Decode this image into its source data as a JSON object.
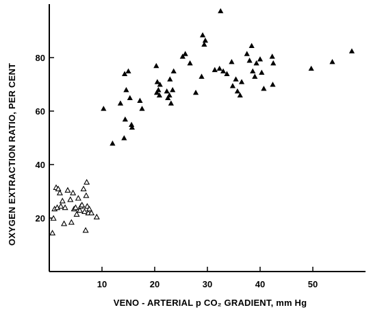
{
  "chart_data": {
    "type": "scatter",
    "title": "",
    "xlabel": "VENO - ARTERIAL p CO₂ GRADIENT, mm Hg",
    "ylabel": "OXYGEN EXTRACTION RATIO, PER CENT",
    "xlim": [
      0,
      60
    ],
    "ylim": [
      0,
      100
    ],
    "xticks": [
      10,
      20,
      30,
      40,
      50
    ],
    "yticks": [
      20,
      40,
      60,
      80
    ],
    "grid": false,
    "series": [
      {
        "marker": "open-triangle",
        "color": "#000000",
        "points": [
          [
            0.6,
            14.5
          ],
          [
            0.8,
            20.0
          ],
          [
            1.0,
            23.5
          ],
          [
            1.5,
            24.0
          ],
          [
            1.3,
            31.5
          ],
          [
            1.7,
            31.0
          ],
          [
            2.0,
            29.5
          ],
          [
            2.2,
            24.5
          ],
          [
            2.5,
            26.5
          ],
          [
            2.8,
            18.0
          ],
          [
            3.0,
            24.0
          ],
          [
            3.5,
            30.5
          ],
          [
            4.0,
            27.0
          ],
          [
            4.2,
            18.5
          ],
          [
            4.5,
            29.5
          ],
          [
            4.7,
            23.5
          ],
          [
            5.0,
            24.0
          ],
          [
            5.2,
            21.5
          ],
          [
            5.5,
            27.5
          ],
          [
            5.8,
            23.0
          ],
          [
            6.0,
            24.5
          ],
          [
            6.2,
            25.0
          ],
          [
            6.5,
            31.0
          ],
          [
            6.7,
            22.5
          ],
          [
            6.9,
            15.5
          ],
          [
            7.0,
            28.5
          ],
          [
            7.1,
            33.5
          ],
          [
            7.2,
            24.5
          ],
          [
            7.4,
            22.0
          ],
          [
            7.6,
            23.5
          ],
          [
            8.0,
            22.0
          ],
          [
            9.0,
            20.5
          ]
        ]
      },
      {
        "marker": "filled-triangle",
        "color": "#000000",
        "points": [
          [
            10.3,
            61.0
          ],
          [
            12.0,
            48.0
          ],
          [
            13.5,
            63.0
          ],
          [
            14.2,
            50.0
          ],
          [
            14.4,
            57.0
          ],
          [
            14.6,
            68.0
          ],
          [
            14.3,
            74.0
          ],
          [
            15.0,
            75.0
          ],
          [
            15.3,
            65.0
          ],
          [
            15.6,
            55.0
          ],
          [
            15.7,
            54.0
          ],
          [
            17.2,
            64.0
          ],
          [
            17.6,
            61.0
          ],
          [
            20.3,
            77.0
          ],
          [
            20.5,
            71.0
          ],
          [
            20.4,
            67.0
          ],
          [
            20.7,
            68.0
          ],
          [
            20.9,
            66.0
          ],
          [
            21.0,
            70.0
          ],
          [
            22.3,
            67.5
          ],
          [
            22.5,
            65.0
          ],
          [
            22.8,
            66.0
          ],
          [
            22.9,
            72.0
          ],
          [
            23.1,
            63.0
          ],
          [
            23.4,
            68.0
          ],
          [
            23.6,
            75.0
          ],
          [
            25.3,
            80.5
          ],
          [
            25.8,
            81.5
          ],
          [
            26.7,
            78.0
          ],
          [
            27.8,
            67.0
          ],
          [
            28.9,
            73.0
          ],
          [
            29.1,
            88.5
          ],
          [
            29.4,
            85.0
          ],
          [
            29.6,
            86.5
          ],
          [
            31.4,
            75.5
          ],
          [
            32.3,
            76.0
          ],
          [
            32.5,
            97.5
          ],
          [
            33.0,
            75.0
          ],
          [
            33.7,
            74.0
          ],
          [
            34.6,
            78.5
          ],
          [
            34.8,
            69.5
          ],
          [
            35.4,
            72.0
          ],
          [
            35.7,
            67.5
          ],
          [
            36.2,
            66.0
          ],
          [
            36.5,
            71.0
          ],
          [
            37.5,
            81.5
          ],
          [
            38.0,
            79.0
          ],
          [
            38.4,
            84.5
          ],
          [
            38.6,
            75.0
          ],
          [
            39.0,
            73.0
          ],
          [
            39.3,
            78.0
          ],
          [
            40.0,
            79.5
          ],
          [
            40.3,
            74.5
          ],
          [
            40.7,
            68.5
          ],
          [
            42.3,
            80.5
          ],
          [
            42.5,
            78.0
          ],
          [
            42.4,
            70.0
          ],
          [
            49.7,
            76.0
          ],
          [
            53.7,
            78.5
          ],
          [
            57.4,
            82.5
          ]
        ]
      }
    ]
  }
}
